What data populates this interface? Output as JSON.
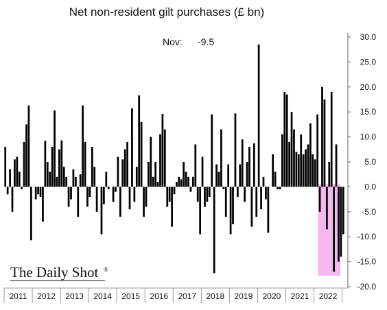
{
  "chart_data": {
    "type": "bar",
    "title": "Net non-resident gilt purchases (£ bn)",
    "annotation": {
      "label": "Nov:",
      "value": "-9.5"
    },
    "brand": "The Daily Shot",
    "brand_mark": "®",
    "ylim": [
      -20,
      32
    ],
    "yticks": [
      "30.0",
      "25.0",
      "20.0",
      "15.0",
      "10.0",
      "5.0",
      "0.0",
      "-5.0",
      "-10.0",
      "-15.0",
      "-20.0"
    ],
    "ytick_values": [
      30,
      25,
      20,
      15,
      10,
      5,
      0,
      -5,
      -10,
      -15,
      -20
    ],
    "x_year_labels": [
      "2011",
      "2012",
      "2013",
      "2014",
      "2015",
      "2016",
      "2017",
      "2018",
      "2019",
      "2020",
      "2021",
      "2022"
    ],
    "highlight": {
      "from_index": 134,
      "to_index": 142,
      "color": "#f5b8f0"
    },
    "grid": false,
    "bar_color": "#000000",
    "values": [
      8.0,
      -1.5,
      3.5,
      -5.0,
      5.5,
      6.0,
      3.0,
      -0.5,
      9.0,
      12.5,
      16.3,
      -10.7,
      0.0,
      -2.5,
      -1.5,
      -2.0,
      -7.0,
      9.2,
      5.0,
      3.0,
      8.0,
      15.3,
      2.0,
      7.5,
      9.3,
      4.0,
      2.0,
      -4.0,
      -2.5,
      3.5,
      2.0,
      -6.0,
      2.5,
      16.3,
      9.0,
      -4.0,
      -2.0,
      8.0,
      4.0,
      -5.0,
      0.0,
      -9.5,
      -3.5,
      3.0,
      -0.5,
      0.0,
      -3.0,
      -1.0,
      6.0,
      -6.0,
      5.5,
      7.5,
      9.0,
      -4.5,
      15.7,
      -3.0,
      4.0,
      18.3,
      13.0,
      -6.0,
      -4.0,
      5.0,
      10.0,
      2.0,
      5.0,
      1.0,
      10.5,
      14.6,
      11.5,
      -4.0,
      -3.0,
      -8.0,
      -1.5,
      1.0,
      2.0,
      1.5,
      5.0,
      3.0,
      2.0,
      -1.0,
      2.0,
      8.5,
      -3.0,
      -9.5,
      6.0,
      -4.0,
      -3.0,
      -2.0,
      14.5,
      -17.3,
      4.5,
      3.0,
      11.5,
      -0.5,
      -6.0,
      4.5,
      -9.5,
      -7.5,
      14.7,
      -2.0,
      4.5,
      9.5,
      -3.0,
      5.0,
      8.0,
      -8.0,
      8.7,
      -6.0,
      28.5,
      -4.5,
      2.0,
      -2.5,
      -9.2,
      0.0,
      6.5,
      3.0,
      -0.5,
      -0.5,
      10.5,
      19.0,
      18.5,
      9.0,
      15.0,
      11.5,
      7.0,
      6.5,
      10.5,
      6.5,
      7.5,
      8.5,
      12.7,
      6.5,
      5.5,
      14.5,
      -5.0,
      20.0,
      17.5,
      -8.5,
      5.0,
      19.0,
      -17.0,
      8.5,
      -15.0,
      -14.0,
      -9.5
    ]
  }
}
